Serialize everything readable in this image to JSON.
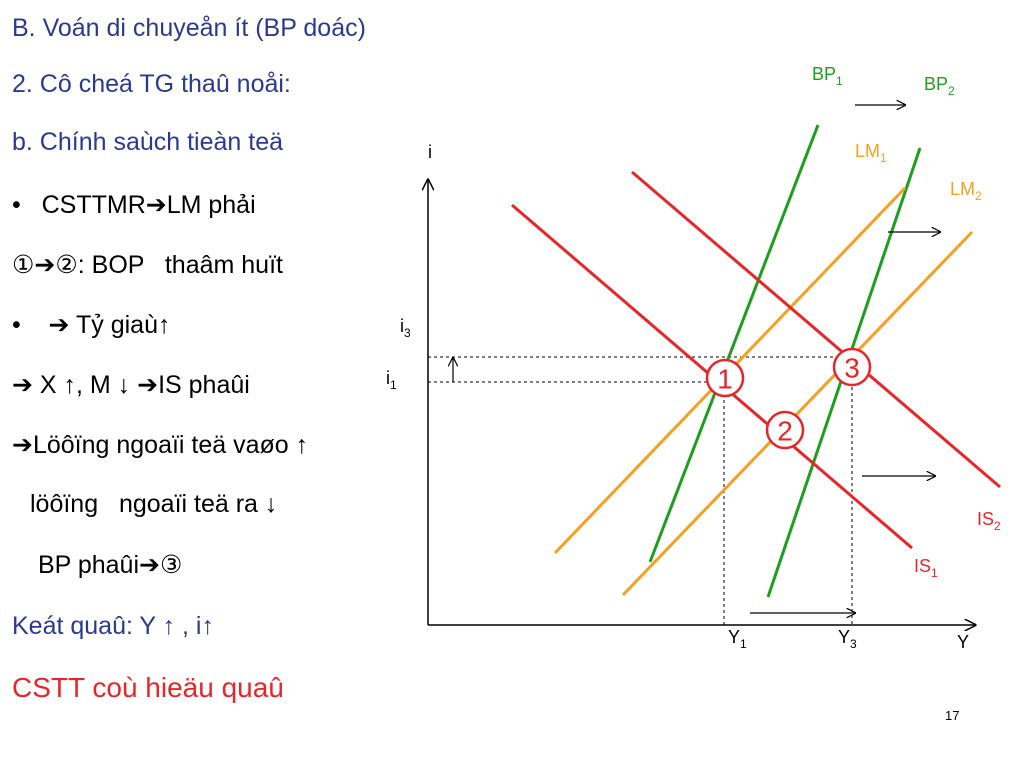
{
  "header": {
    "title": "B. Voán di chuyeån ít (BP doác)",
    "subtitle": "2. Cô cheá TG thaû noåi:",
    "section": "b. Chính saùch tieàn teä"
  },
  "points": [
    "CSTTMR➔LM phải",
    "①➔②: BOP   thaâm huït",
    "➔ Tỷ giaù↑",
    "➔ X ↑, M ↓ ➔IS phaûi",
    "➔Löôïng ngoaïi teä vaøo ↑",
    "löôïng   ngoaïi teä ra ↓",
    "BP phaûi➔③"
  ],
  "result": "Keát quaû: Y ↑ , i↑",
  "conclusion": "CSTT coù hieäu quaû",
  "diagram": {
    "y_axis": "i",
    "x_axis": "Y",
    "y_levels": [
      {
        "text": "i",
        "sub": "3"
      },
      {
        "text": "i",
        "sub": "1"
      }
    ],
    "x_levels": [
      {
        "text": "Y",
        "sub": "1"
      },
      {
        "text": "Y",
        "sub": "3"
      }
    ],
    "curves": {
      "bp1": {
        "text": "BP",
        "sub": "1"
      },
      "bp2": {
        "text": "BP",
        "sub": "2"
      },
      "lm1": {
        "text": "LM",
        "sub": "1"
      },
      "lm2": {
        "text": "LM",
        "sub": "2"
      },
      "is1": {
        "text": "IS",
        "sub": "1"
      },
      "is2": {
        "text": "IS",
        "sub": "2"
      }
    },
    "markers": [
      "1",
      "2",
      "3"
    ]
  },
  "page_number": "17"
}
